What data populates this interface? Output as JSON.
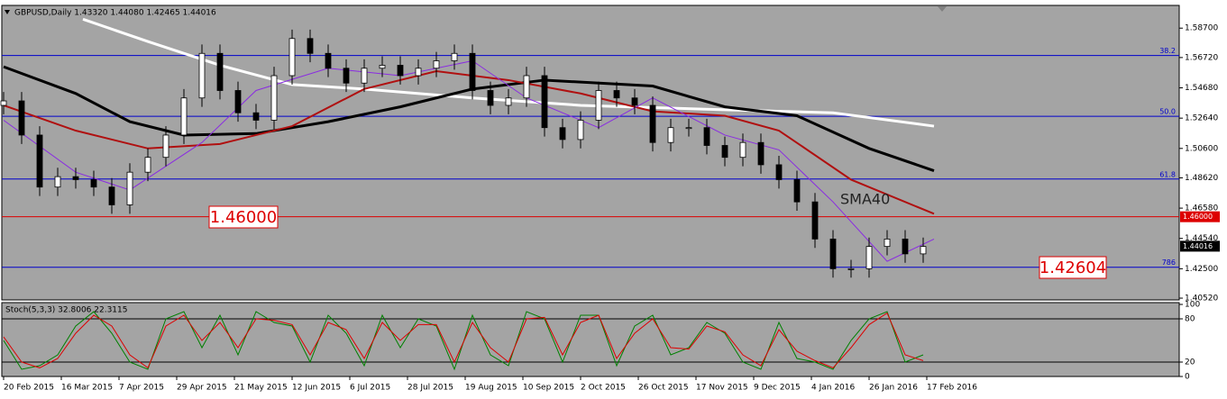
{
  "chart_data": [
    {
      "type": "candlestick",
      "title": "GBPUSD,Daily 1.43320 1.44080 1.42465 1.44016",
      "x": [
        0,
        5,
        10,
        15,
        20,
        25,
        30,
        35,
        40,
        45,
        50,
        55,
        60,
        65,
        70,
        75,
        80,
        85,
        90,
        95,
        100,
        105,
        110,
        115,
        120,
        125,
        130,
        135,
        140,
        145,
        150,
        155,
        160,
        165,
        170,
        175,
        180,
        185,
        190,
        195,
        200,
        205,
        210,
        215,
        220,
        225,
        230,
        235,
        240,
        245,
        250,
        255
      ],
      "open": [
        1.535,
        1.538,
        1.515,
        1.48,
        1.487,
        1.485,
        1.48,
        1.468,
        1.49,
        1.5,
        1.515,
        1.54,
        1.57,
        1.545,
        1.53,
        1.525,
        1.555,
        1.58,
        1.57,
        1.56,
        1.55,
        1.56,
        1.562,
        1.555,
        1.56,
        1.565,
        1.57,
        1.545,
        1.535,
        1.54,
        1.555,
        1.52,
        1.512,
        1.525,
        1.545,
        1.54,
        1.535,
        1.51,
        1.52,
        1.52,
        1.508,
        1.5,
        1.51,
        1.495,
        1.485,
        1.47,
        1.445,
        1.425,
        1.425,
        1.44,
        1.445,
        1.435
      ],
      "high": [
        1.544,
        1.544,
        1.521,
        1.493,
        1.493,
        1.491,
        1.486,
        1.496,
        1.506,
        1.521,
        1.546,
        1.576,
        1.576,
        1.551,
        1.536,
        1.561,
        1.586,
        1.586,
        1.576,
        1.566,
        1.566,
        1.568,
        1.568,
        1.566,
        1.571,
        1.576,
        1.576,
        1.551,
        1.546,
        1.561,
        1.561,
        1.526,
        1.531,
        1.551,
        1.551,
        1.546,
        1.541,
        1.526,
        1.526,
        1.526,
        1.514,
        1.516,
        1.516,
        1.501,
        1.491,
        1.476,
        1.451,
        1.431,
        1.446,
        1.451,
        1.451,
        1.446
      ],
      "low": [
        1.529,
        1.509,
        1.474,
        1.474,
        1.479,
        1.474,
        1.462,
        1.462,
        1.484,
        1.494,
        1.509,
        1.534,
        1.539,
        1.524,
        1.519,
        1.519,
        1.549,
        1.564,
        1.554,
        1.544,
        1.544,
        1.554,
        1.549,
        1.549,
        1.554,
        1.559,
        1.539,
        1.529,
        1.529,
        1.534,
        1.514,
        1.506,
        1.506,
        1.519,
        1.534,
        1.529,
        1.504,
        1.504,
        1.514,
        1.502,
        1.494,
        1.494,
        1.489,
        1.479,
        1.464,
        1.439,
        1.419,
        1.419,
        1.419,
        1.434,
        1.429,
        1.429
      ],
      "close": [
        1.538,
        1.515,
        1.48,
        1.487,
        1.485,
        1.48,
        1.468,
        1.49,
        1.5,
        1.515,
        1.54,
        1.57,
        1.545,
        1.53,
        1.525,
        1.555,
        1.58,
        1.57,
        1.56,
        1.55,
        1.56,
        1.562,
        1.555,
        1.56,
        1.565,
        1.57,
        1.545,
        1.535,
        1.54,
        1.555,
        1.52,
        1.512,
        1.525,
        1.545,
        1.54,
        1.535,
        1.51,
        1.52,
        1.52,
        1.508,
        1.5,
        1.51,
        1.495,
        1.485,
        1.47,
        1.445,
        1.425,
        1.425,
        1.44,
        1.445,
        1.435,
        1.44
      ],
      "up_color": "#ffffff",
      "down_color": "#000000",
      "overlays": [
        {
          "color": "#ffffff",
          "width": 3,
          "x": [
            22,
            40,
            60,
            80,
            100,
            130,
            160,
            200,
            230,
            258
          ],
          "values": [
            1.593,
            1.578,
            1.562,
            1.549,
            1.546,
            1.54,
            1.535,
            1.532,
            1.53,
            1.521
          ]
        },
        {
          "color": "#000000",
          "width": 3,
          "x": [
            0,
            20,
            35,
            50,
            70,
            90,
            110,
            130,
            150,
            180,
            200,
            220,
            240,
            258
          ],
          "values": [
            1.561,
            1.543,
            1.524,
            1.515,
            1.516,
            1.524,
            1.534,
            1.546,
            1.552,
            1.548,
            1.534,
            1.528,
            1.506,
            1.491
          ]
        },
        {
          "color": "#b01010",
          "width": 2,
          "x": [
            0,
            20,
            40,
            60,
            80,
            100,
            120,
            140,
            160,
            180,
            200,
            215,
            235,
            258
          ],
          "values": [
            1.535,
            1.518,
            1.506,
            1.509,
            1.521,
            1.546,
            1.558,
            1.552,
            1.543,
            1.531,
            1.528,
            1.518,
            1.485,
            1.462
          ]
        },
        {
          "color": "#8a2be2",
          "width": 1,
          "x": [
            0,
            20,
            35,
            55,
            70,
            90,
            110,
            130,
            145,
            165,
            180,
            200,
            215,
            230,
            245,
            258
          ],
          "values": [
            1.525,
            1.49,
            1.478,
            1.51,
            1.545,
            1.56,
            1.555,
            1.565,
            1.54,
            1.52,
            1.54,
            1.515,
            1.505,
            1.47,
            1.43,
            1.445
          ]
        }
      ],
      "hlines": [
        {
          "value": 1.5686,
          "color": "#0000cc",
          "label": "38.2"
        },
        {
          "value": 1.5276,
          "color": "#0000cc",
          "label": "50.0"
        },
        {
          "value": 1.4854,
          "color": "#0000cc",
          "label": "61.8"
        },
        {
          "value": 1.426,
          "color": "#0000cc",
          "label": "786"
        },
        {
          "value": 1.46,
          "color": "#dd0000"
        }
      ],
      "price_tags": [
        {
          "value": 1.46,
          "label": "1.46000",
          "color": "#dd0000"
        },
        {
          "value": 1.44016,
          "label": "1.44016",
          "color": "#000000"
        }
      ],
      "annotations": [
        {
          "text": "SMA40"
        },
        {
          "text": "1.46000"
        },
        {
          "text": "1.42604"
        }
      ],
      "xlim": [
        -0.5,
        326
      ],
      "ylim": [
        1.404,
        1.6023
      ],
      "yticks": [
        {
          "value": 1.587,
          "label": "1.58700"
        },
        {
          "value": 1.5672,
          "label": "1.56720"
        },
        {
          "value": 1.5468,
          "label": "1.54680"
        },
        {
          "value": 1.5264,
          "label": "1.52640"
        },
        {
          "value": 1.506,
          "label": "1.50600"
        },
        {
          "value": 1.4862,
          "label": "1.48620"
        },
        {
          "value": 1.4658,
          "label": "1.46580"
        },
        {
          "value": 1.4454,
          "label": "1.44540"
        },
        {
          "value": 1.425,
          "label": "1.42500"
        },
        {
          "value": 1.4052,
          "label": "1.40520"
        }
      ],
      "xticks": [
        {
          "value": 0,
          "label": "20 Feb 2015"
        },
        {
          "value": 16,
          "label": "16 Mar 2015"
        },
        {
          "value": 32,
          "label": "7 Apr 2015"
        },
        {
          "value": 48,
          "label": "29 Apr 2015"
        },
        {
          "value": 64,
          "label": "21 May 2015"
        },
        {
          "value": 80,
          "label": "12 Jun 2015"
        },
        {
          "value": 96,
          "label": "6 Jul 2015"
        },
        {
          "value": 112,
          "label": "28 Jul 2015"
        },
        {
          "value": 128,
          "label": "19 Aug 2015"
        },
        {
          "value": 144,
          "label": "10 Sep 2015"
        },
        {
          "value": 160,
          "label": "2 Oct 2015"
        },
        {
          "value": 176,
          "label": "26 Oct 2015"
        },
        {
          "value": 192,
          "label": "17 Nov 2015"
        },
        {
          "value": 208,
          "label": "9 Dec 2015"
        },
        {
          "value": 224,
          "label": "4 Jan 2016"
        },
        {
          "value": 240,
          "label": "26 Jan 2016"
        },
        {
          "value": 256,
          "label": "17 Feb 2016"
        }
      ]
    },
    {
      "type": "line",
      "title": "Stoch(5,3,3) 32.8006 22.3115",
      "x": [
        0,
        5,
        10,
        15,
        20,
        25,
        30,
        35,
        40,
        45,
        50,
        55,
        60,
        65,
        70,
        75,
        80,
        85,
        90,
        95,
        100,
        105,
        110,
        115,
        120,
        125,
        130,
        135,
        140,
        145,
        150,
        155,
        160,
        165,
        170,
        175,
        180,
        185,
        190,
        195,
        200,
        205,
        210,
        215,
        220,
        225,
        230,
        235,
        240,
        245,
        250,
        255
      ],
      "series": [
        {
          "color": "#008000",
          "values": [
            50,
            10,
            15,
            30,
            70,
            90,
            60,
            20,
            10,
            80,
            90,
            40,
            85,
            30,
            90,
            75,
            70,
            20,
            85,
            60,
            15,
            85,
            40,
            80,
            70,
            10,
            85,
            30,
            15,
            90,
            80,
            20,
            85,
            85,
            15,
            70,
            85,
            30,
            40,
            75,
            60,
            20,
            10,
            75,
            25,
            20,
            10,
            50,
            80,
            90,
            20,
            30
          ]
        },
        {
          "color": "#dd0000",
          "values": [
            55,
            20,
            12,
            25,
            60,
            85,
            70,
            30,
            12,
            70,
            85,
            50,
            75,
            40,
            80,
            78,
            72,
            30,
            75,
            65,
            25,
            75,
            50,
            72,
            72,
            20,
            75,
            40,
            20,
            80,
            82,
            30,
            75,
            85,
            25,
            60,
            80,
            40,
            38,
            70,
            62,
            30,
            15,
            65,
            35,
            22,
            12,
            40,
            72,
            88,
            30,
            22
          ]
        }
      ],
      "levels": [
        80,
        20
      ],
      "xlim": [
        -0.5,
        326
      ],
      "ylim": [
        0,
        102.5
      ],
      "yticks": [
        100,
        80,
        20,
        0
      ]
    }
  ]
}
